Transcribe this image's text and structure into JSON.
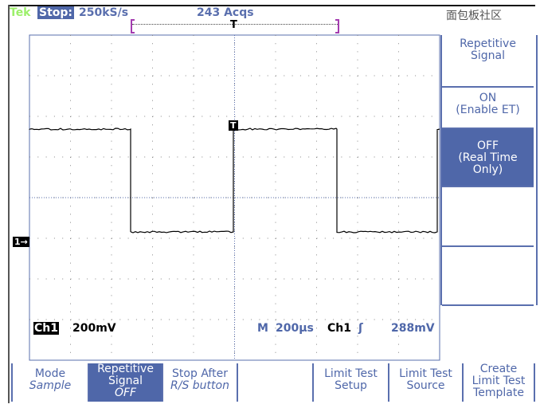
{
  "header": {
    "brand": "Tek",
    "state": "Stop:",
    "sample_rate": "250kS/s",
    "acquisitions": "243 Acqs",
    "trigger_position_marker": "T"
  },
  "waveform": {
    "channel_marker": "1→",
    "trigger_marker": "T",
    "levels": [
      "high",
      "low"
    ],
    "color": "#000000"
  },
  "readout": {
    "channel": "Ch1",
    "volts_per_div": "200mV",
    "timebase_label": "M",
    "time_per_div": "200µs",
    "trigger_source": "Ch1",
    "trigger_slope": "ʃ",
    "trigger_level": "288mV"
  },
  "side_menu": {
    "title": [
      "Repetitive",
      "Signal"
    ],
    "on": [
      "ON",
      "(Enable ET)"
    ],
    "off": [
      "OFF",
      "(Real Time",
      "Only)"
    ]
  },
  "bottom_menu": [
    {
      "line1": "Mode",
      "line2": "Sample"
    },
    {
      "line1": "Repetitive",
      "line2": "Signal",
      "line3": "OFF"
    },
    {
      "line1": "Stop After",
      "line2": "R/S button"
    },
    {
      "line1": ""
    },
    {
      "line1": "Limit Test",
      "line2": "Setup"
    },
    {
      "line1": "Limit Test",
      "line2": "Source"
    },
    {
      "line1": "Create",
      "line2": "Limit Test",
      "line3": "Template"
    }
  ],
  "watermark": "面包板社区",
  "colors": {
    "accent": "#4f67a9",
    "brand": "#9cf06a",
    "bracket": "#a43bb0"
  }
}
